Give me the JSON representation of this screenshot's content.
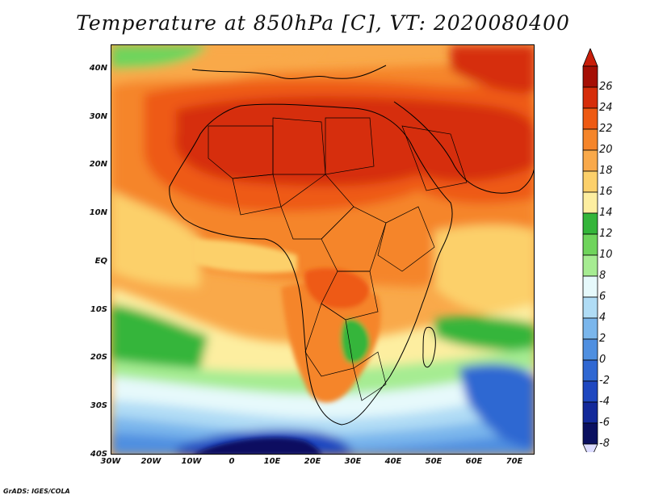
{
  "title": "Temperature at 850hPa [C], VT: 2020080400",
  "credit": "GrADS: IGES/COLA",
  "map": {
    "lon_range": [
      -30,
      75
    ],
    "lat_range": [
      -40,
      45
    ],
    "lat_ticks": [
      {
        "value": 40,
        "label": "40N"
      },
      {
        "value": 30,
        "label": "30N"
      },
      {
        "value": 20,
        "label": "20N"
      },
      {
        "value": 10,
        "label": "10N"
      },
      {
        "value": 0,
        "label": "EQ"
      },
      {
        "value": -10,
        "label": "10S"
      },
      {
        "value": -20,
        "label": "20S"
      },
      {
        "value": -30,
        "label": "30S"
      },
      {
        "value": -40,
        "label": "40S"
      }
    ],
    "lon_ticks": [
      {
        "value": -30,
        "label": "30W"
      },
      {
        "value": -20,
        "label": "20W"
      },
      {
        "value": -10,
        "label": "10W"
      },
      {
        "value": 0,
        "label": "0"
      },
      {
        "value": 10,
        "label": "10E"
      },
      {
        "value": 20,
        "label": "20E"
      },
      {
        "value": 30,
        "label": "30E"
      },
      {
        "value": 40,
        "label": "40E"
      },
      {
        "value": 50,
        "label": "50E"
      },
      {
        "value": 60,
        "label": "60E"
      },
      {
        "value": 70,
        "label": "70E"
      }
    ]
  },
  "colorbar": {
    "levels": [
      {
        "label": "26",
        "color": "#a50f05"
      },
      {
        "label": "24",
        "color": "#d62d0a"
      },
      {
        "label": "22",
        "color": "#ee5a12"
      },
      {
        "label": "20",
        "color": "#f5852a"
      },
      {
        "label": "18",
        "color": "#f9a94a"
      },
      {
        "label": "16",
        "color": "#fcd06a"
      },
      {
        "label": "14",
        "color": "#fdeea0"
      },
      {
        "label": "12",
        "color": "#34b53a"
      },
      {
        "label": "10",
        "color": "#6fd45c"
      },
      {
        "label": "8",
        "color": "#a6ec92"
      },
      {
        "label": "6",
        "color": "#e6f9fb"
      },
      {
        "label": "4",
        "color": "#b0dcf5"
      },
      {
        "label": "2",
        "color": "#7ab6ec"
      },
      {
        "label": "0",
        "color": "#4f8fe0"
      },
      {
        "label": "-2",
        "color": "#2f67d2"
      },
      {
        "label": "-4",
        "color": "#1e47c0"
      },
      {
        "label": "-6",
        "color": "#13299a"
      },
      {
        "label": "-8",
        "color": "#0a1060"
      }
    ],
    "top_arrow_color": "#c81e0a",
    "bottom_arrow_color": "#dcdcff"
  }
}
